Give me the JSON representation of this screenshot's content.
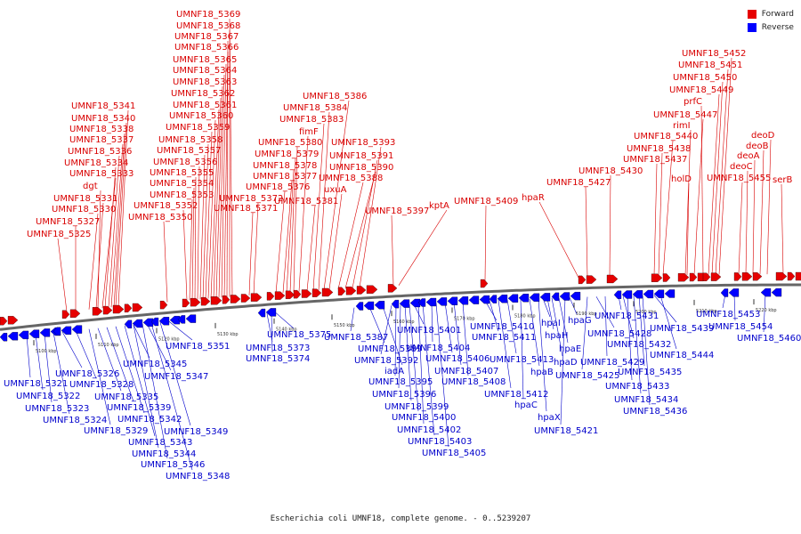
{
  "legend": {
    "forward_label": "Forward",
    "reverse_label": "Reverse",
    "forward_color": "#e60000",
    "reverse_color": "#0000ff"
  },
  "caption": "Escherichia coli UMNF18, complete genome. - 0..5239207",
  "colors": {
    "backbone": "#666666",
    "forward_line": "#d90000",
    "reverse_line": "#0000cc"
  },
  "ticks": [
    "5100 kbp",
    "5110 kbp",
    "5120 kbp",
    "5130 kbp",
    "5140 kbp",
    "5150 kbp",
    "5160 kbp",
    "5170 kbp",
    "5180 kbp",
    "5190 kbp",
    "5200 kbp",
    "5210 kbp",
    "5220 kbp"
  ],
  "forward_labels": [
    "UMNF18_5325",
    "UMNF18_5327",
    "UMNF18_5330",
    "UMNF18_5331",
    "dgt",
    "UMNF18_5333",
    "UMNF18_5334",
    "UMNF18_5336",
    "UMNF18_5337",
    "UMNF18_5338",
    "UMNF18_5340",
    "UMNF18_5341",
    "UMNF18_5350",
    "UMNF18_5352",
    "UMNF18_5353",
    "UMNF18_5354",
    "UMNF18_5355",
    "UMNF18_5356",
    "UMNF18_5357",
    "UMNF18_5358",
    "UMNF18_5359",
    "UMNF18_5360",
    "UMNF18_5361",
    "UMNF18_5362",
    "UMNF18_5363",
    "UMNF18_5364",
    "UMNF18_5365",
    "UMNF18_5366",
    "UMNF18_5367",
    "UMNF18_5368",
    "UMNF18_5369",
    "UMNF18_5371",
    "UMNF18_5372",
    "UMNF18_5376",
    "UMNF18_5377",
    "UMNF18_5378",
    "UMNF18_5379",
    "UMNF18_5380",
    "fimF",
    "UMNF18_5381",
    "UMNF18_5383",
    "UMNF18_5384",
    "UMNF18_5386",
    "uxuA",
    "UMNF18_5388",
    "UMNF18_5390",
    "UMNF18_5391",
    "UMNF18_5393",
    "UMNF18_5397",
    "kptA",
    "UMNF18_5409",
    "hpaR",
    "UMNF18_5427",
    "UMNF18_5430",
    "UMNF18_5437",
    "UMNF18_5438",
    "UMNF18_5440",
    "rimI",
    "UMNF18_5447",
    "prfC",
    "UMNF18_5449",
    "UMNF18_5450",
    "UMNF18_5451",
    "UMNF18_5452",
    "holD",
    "UMNF18_5455",
    "deoC",
    "deoA",
    "deoB",
    "deoD",
    "serB"
  ],
  "reverse_labels": [
    "UMNF18_5321",
    "UMNF18_5322",
    "UMNF18_5323",
    "UMNF18_5324",
    "UMNF18_5326",
    "UMNF18_5328",
    "UMNF18_5329",
    "UMNF18_5335",
    "UMNF18_5339",
    "UMNF18_5342",
    "UMNF18_5343",
    "UMNF18_5344",
    "UMNF18_5345",
    "UMNF18_5346",
    "UMNF18_5347",
    "UMNF18_5348",
    "UMNF18_5349",
    "UMNF18_5351",
    "UMNF18_5373",
    "UMNF18_5374",
    "UMNF18_5375",
    "UMNF18_5387",
    "UMNF18_5389",
    "iadA",
    "UMNF18_5392",
    "UMNF18_5395",
    "UMNF18_5396",
    "UMNF18_5399",
    "UMNF18_5400",
    "UMNF18_5401",
    "UMNF18_5402",
    "UMNF18_5403",
    "UMNF18_5404",
    "UMNF18_5405",
    "UMNF18_5406",
    "UMNF18_5407",
    "UMNF18_5408",
    "UMNF18_5410",
    "UMNF18_5411",
    "UMNF18_5412",
    "UMNF18_5413",
    "hpaC",
    "hpaB",
    "hpaX",
    "hpaI",
    "hpaH",
    "hpaD",
    "hpaE",
    "hpaG",
    "UMNF18_5421",
    "UMNF18_5425",
    "UMNF18_5428",
    "UMNF18_5429",
    "UMNF18_5431",
    "UMNF18_5432",
    "UMNF18_5433",
    "UMNF18_5434",
    "UMNF18_5435",
    "UMNF18_5436",
    "UMNF18_5439",
    "UMNF18_5444",
    "UMNF18_5453",
    "UMNF18_5454",
    "UMNF18_5460"
  ]
}
